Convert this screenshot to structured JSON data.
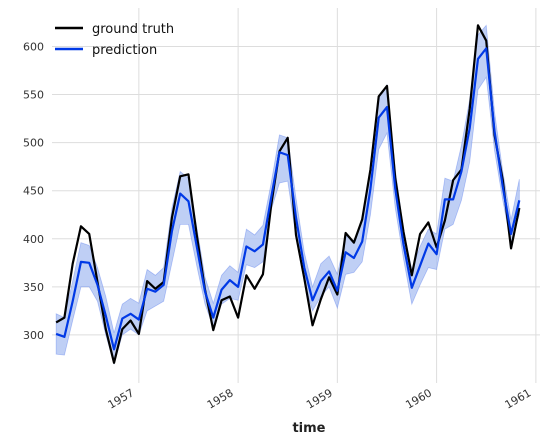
{
  "chart_data": {
    "type": "line",
    "title": "",
    "xlabel": "time",
    "ylabel": "",
    "x": [
      "1956-03",
      "1956-04",
      "1956-05",
      "1956-06",
      "1956-07",
      "1956-08",
      "1956-09",
      "1956-10",
      "1956-11",
      "1956-12",
      "1957-01",
      "1957-02",
      "1957-03",
      "1957-04",
      "1957-05",
      "1957-06",
      "1957-07",
      "1957-08",
      "1957-09",
      "1957-10",
      "1957-11",
      "1957-12",
      "1958-01",
      "1958-02",
      "1958-03",
      "1958-04",
      "1958-05",
      "1958-06",
      "1958-07",
      "1958-08",
      "1958-09",
      "1958-10",
      "1958-11",
      "1958-12",
      "1959-01",
      "1959-02",
      "1959-03",
      "1959-04",
      "1959-05",
      "1959-06",
      "1959-07",
      "1959-08",
      "1959-09",
      "1959-10",
      "1959-11",
      "1959-12",
      "1960-01",
      "1960-02",
      "1960-03",
      "1960-04",
      "1960-05",
      "1960-06",
      "1960-07",
      "1960-08",
      "1960-09",
      "1960-10",
      "1960-11",
      "1960-12"
    ],
    "series": [
      {
        "name": "ground truth",
        "color": "#000000",
        "values": [
          313,
          318,
          374,
          413,
          405,
          355,
          306,
          271,
          306,
          315,
          301,
          356,
          348,
          355,
          422,
          465,
          467,
          404,
          347,
          305,
          336,
          340,
          318,
          362,
          348,
          363,
          435,
          491,
          505,
          404,
          359,
          310,
          337,
          360,
          342,
          406,
          396,
          420,
          472,
          548,
          559,
          463,
          407,
          362,
          405,
          417,
          391,
          419,
          461,
          472,
          535,
          622,
          606,
          508,
          461,
          390,
          432,
          null
        ]
      },
      {
        "name": "prediction",
        "color": "#0039e6",
        "band_color": "#a9bff2",
        "values": [
          301,
          298,
          335,
          376,
          375,
          352,
          320,
          285,
          317,
          322,
          316,
          348,
          345,
          352,
          408,
          447,
          439,
          392,
          345,
          318,
          347,
          357,
          350,
          392,
          387,
          394,
          443,
          490,
          487,
          422,
          370,
          336,
          356,
          366,
          346,
          386,
          380,
          397,
          452,
          526,
          537,
          452,
          394,
          349,
          372,
          395,
          384,
          441,
          441,
          470,
          515,
          587,
          598,
          512,
          454,
          405,
          440,
          null
        ],
        "lower": [
          280,
          279,
          315,
          350,
          350,
          335,
          300,
          270,
          300,
          306,
          300,
          325,
          330,
          335,
          375,
          415,
          415,
          372,
          332,
          308,
          332,
          338,
          336,
          373,
          370,
          376,
          430,
          458,
          460,
          402,
          355,
          325,
          340,
          350,
          328,
          363,
          365,
          376,
          425,
          493,
          510,
          432,
          379,
          332,
          352,
          370,
          368,
          410,
          415,
          440,
          480,
          555,
          568,
          492,
          440,
          395,
          425,
          null
        ],
        "upper": [
          322,
          318,
          356,
          396,
          393,
          370,
          340,
          302,
          332,
          338,
          333,
          368,
          362,
          370,
          432,
          470,
          463,
          412,
          360,
          333,
          362,
          372,
          365,
          410,
          404,
          414,
          458,
          508,
          505,
          442,
          386,
          350,
          374,
          382,
          363,
          403,
          398,
          420,
          475,
          548,
          560,
          472,
          410,
          368,
          392,
          410,
          405,
          463,
          460,
          497,
          545,
          612,
          622,
          532,
          470,
          420,
          462,
          null
        ]
      }
    ],
    "y_ticks": [
      300,
      350,
      400,
      450,
      500,
      550,
      600
    ],
    "x_ticks": [
      "1957",
      "1958",
      "1959",
      "1960",
      "1961"
    ],
    "ylim": [
      250,
      640
    ],
    "grid": true,
    "legend_position": "top-left"
  }
}
